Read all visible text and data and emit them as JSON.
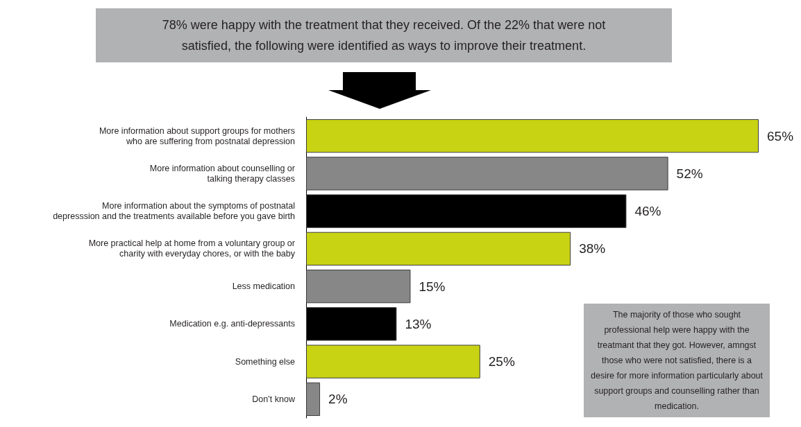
{
  "chart_data": {
    "type": "bar",
    "orientation": "horizontal",
    "title": "78% were happy with the treatment that they received. Of the 22% that were not satisfied, the following were identified as ways to improve their treatment.",
    "categories": [
      "More information about support groups for mothers\nwho are suffering from postnatal depression",
      "More information about counselling or\ntalking therapy classes",
      "More information about the symptoms of postnatal\ndepresssion and the treatments available before you gave birth",
      "More practical help at home from a voluntary group or\ncharity with everyday chores, or with the baby",
      "Less medication",
      "Medication e.g. anti-depressants",
      "Something else",
      "Don’t know"
    ],
    "values": [
      65,
      52,
      46,
      38,
      15,
      13,
      25,
      2
    ],
    "colors": [
      "#c8d314",
      "#878787",
      "#000000",
      "#c8d314",
      "#878787",
      "#000000",
      "#c8d314",
      "#878787"
    ],
    "value_labels": [
      "65%",
      "52%",
      "46%",
      "38%",
      "15%",
      "13%",
      "25%",
      "2%"
    ],
    "tick_labels": "y",
    "annotations": [
      "The majority of those who sought professional help were happy with the treatmant that they got. However, amngst those who were not satisfied, there is a desire for more information particularly about support groups and counselling rather than medication."
    ]
  }
}
